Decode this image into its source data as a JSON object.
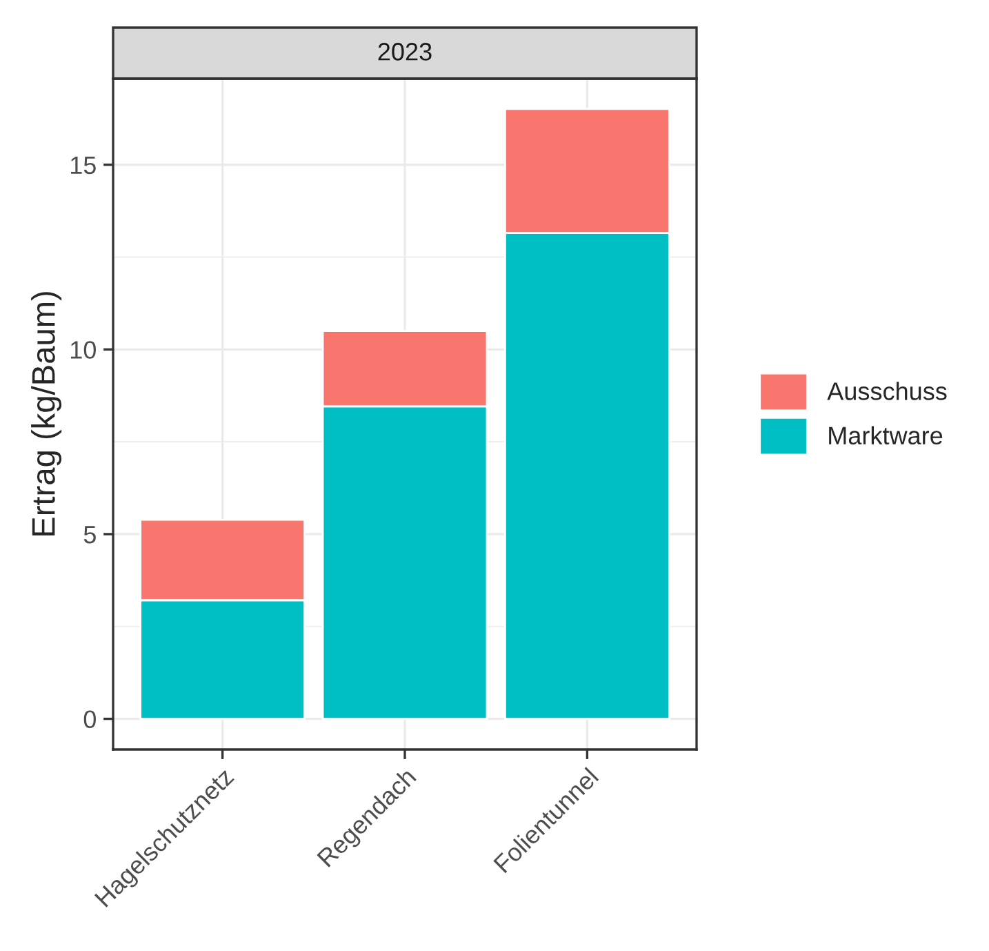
{
  "chart_data": {
    "type": "bar",
    "title": "2023",
    "ylabel": "Ertrag (kg/Baum)",
    "categories": [
      "Hagelschutznetz",
      "Regendach",
      "Folientunnel"
    ],
    "stacked": true,
    "series": [
      {
        "name": "Marktware",
        "color": "#00bfc4",
        "values": [
          3.21,
          8.46,
          13.15
        ]
      },
      {
        "name": "Ausschuss",
        "color": "#f8766d",
        "values": [
          2.18,
          2.04,
          3.36
        ]
      }
    ],
    "ylim": [
      -0.83,
      17.33
    ],
    "yticks": [
      0,
      5,
      10,
      15
    ],
    "grid": true,
    "legend": "right"
  }
}
